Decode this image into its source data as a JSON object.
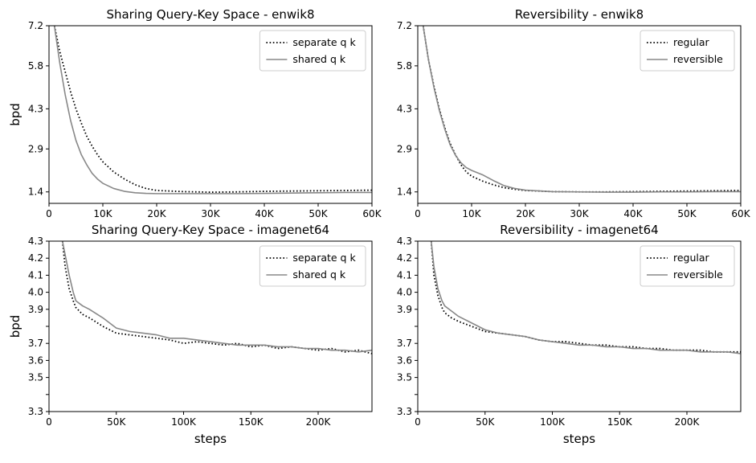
{
  "chart_data": [
    {
      "type": "line",
      "title": "Sharing Query-Key Space - enwik8",
      "xlabel": "",
      "ylabel": "bpd",
      "xlim": [
        0,
        60000
      ],
      "ylim": [
        1.0,
        7.2
      ],
      "xticks": [
        0,
        10000,
        20000,
        30000,
        40000,
        50000,
        60000
      ],
      "xtick_labels": [
        "0",
        "10K",
        "20K",
        "30K",
        "40K",
        "50K",
        "60K"
      ],
      "yticks": [
        1.4,
        2.9,
        4.3,
        5.8,
        7.2
      ],
      "ytick_labels": [
        "1.4",
        "2.9",
        "4.3",
        "5.8",
        "7.2"
      ],
      "legend": "top-right",
      "series": [
        {
          "name": "separate q k",
          "style": "dotted",
          "color": "#000000",
          "x": [
            1000,
            2000,
            3000,
            4000,
            5000,
            6000,
            7000,
            8000,
            9000,
            10000,
            12000,
            14000,
            16000,
            18000,
            20000,
            25000,
            30000,
            35000,
            40000,
            45000,
            50000,
            55000,
            60000
          ],
          "y": [
            7.2,
            6.3,
            5.6,
            4.9,
            4.3,
            3.8,
            3.35,
            3.0,
            2.7,
            2.45,
            2.1,
            1.85,
            1.65,
            1.52,
            1.45,
            1.41,
            1.39,
            1.4,
            1.42,
            1.43,
            1.44,
            1.45,
            1.46
          ]
        },
        {
          "name": "shared q k",
          "style": "solid",
          "color": "#888888",
          "x": [
            1000,
            2000,
            3000,
            4000,
            5000,
            6000,
            7000,
            8000,
            9000,
            10000,
            12000,
            14000,
            16000,
            18000,
            20000,
            25000,
            30000,
            35000,
            40000,
            45000,
            50000,
            55000,
            60000
          ],
          "y": [
            7.2,
            5.9,
            4.8,
            3.9,
            3.2,
            2.7,
            2.35,
            2.05,
            1.85,
            1.7,
            1.52,
            1.42,
            1.37,
            1.35,
            1.34,
            1.34,
            1.34,
            1.34,
            1.35,
            1.36,
            1.37,
            1.38,
            1.38
          ]
        }
      ]
    },
    {
      "type": "line",
      "title": "Reversibility - enwik8",
      "xlabel": "",
      "ylabel": "",
      "xlim": [
        0,
        60000
      ],
      "ylim": [
        1.0,
        7.2
      ],
      "xticks": [
        0,
        10000,
        20000,
        30000,
        40000,
        50000,
        60000
      ],
      "xtick_labels": [
        "0",
        "10K",
        "20K",
        "30K",
        "40K",
        "50K",
        "60K"
      ],
      "yticks": [
        1.4,
        2.9,
        4.3,
        5.8,
        7.2
      ],
      "ytick_labels": [
        "1.4",
        "2.9",
        "4.3",
        "5.8",
        "7.2"
      ],
      "legend": "top-right",
      "series": [
        {
          "name": "regular",
          "style": "dotted",
          "color": "#000000",
          "x": [
            1000,
            2000,
            3000,
            4000,
            5000,
            6000,
            7000,
            8000,
            9000,
            10000,
            12000,
            14000,
            16000,
            18000,
            20000,
            25000,
            30000,
            35000,
            40000,
            45000,
            50000,
            55000,
            60000
          ],
          "y": [
            7.2,
            6.0,
            5.1,
            4.3,
            3.65,
            3.1,
            2.7,
            2.35,
            2.1,
            1.95,
            1.78,
            1.65,
            1.55,
            1.49,
            1.45,
            1.41,
            1.4,
            1.4,
            1.41,
            1.42,
            1.43,
            1.44,
            1.45
          ]
        },
        {
          "name": "reversible",
          "style": "solid",
          "color": "#888888",
          "x": [
            1000,
            2000,
            3000,
            4000,
            5000,
            6000,
            7000,
            8000,
            9000,
            10000,
            12000,
            14000,
            16000,
            18000,
            20000,
            25000,
            30000,
            35000,
            40000,
            45000,
            50000,
            55000,
            60000
          ],
          "y": [
            7.2,
            6.0,
            5.05,
            4.25,
            3.6,
            3.05,
            2.68,
            2.42,
            2.25,
            2.15,
            2.0,
            1.8,
            1.62,
            1.52,
            1.46,
            1.41,
            1.4,
            1.39,
            1.39,
            1.4,
            1.4,
            1.41,
            1.41
          ]
        }
      ]
    },
    {
      "type": "line",
      "title": "Sharing Query-Key Space - imagenet64",
      "xlabel": "steps",
      "ylabel": "bpd",
      "xlim": [
        0,
        240000
      ],
      "ylim": [
        3.3,
        4.3
      ],
      "xticks": [
        0,
        50000,
        100000,
        150000,
        200000
      ],
      "xtick_labels": [
        "0",
        "50K",
        "100K",
        "150K",
        "200K"
      ],
      "yticks": [
        3.3,
        3.4,
        3.5,
        3.6,
        3.7,
        3.8,
        3.9,
        4.0,
        4.1,
        4.2,
        4.3
      ],
      "ytick_labels": [
        "3.3",
        "",
        "3.5",
        "3.6",
        "3.7",
        "",
        "3.9",
        "4.0",
        "4.1",
        "4.2",
        "4.3"
      ],
      "legend": "top-right",
      "series": [
        {
          "name": "separate q k",
          "style": "dotted",
          "color": "#000000",
          "x": [
            10000,
            12000,
            15000,
            18000,
            20000,
            25000,
            30000,
            40000,
            50000,
            60000,
            70000,
            80000,
            90000,
            100000,
            110000,
            120000,
            130000,
            140000,
            150000,
            160000,
            170000,
            180000,
            190000,
            200000,
            210000,
            220000,
            230000,
            240000
          ],
          "y": [
            4.3,
            4.15,
            4.02,
            3.95,
            3.91,
            3.87,
            3.85,
            3.8,
            3.76,
            3.75,
            3.74,
            3.73,
            3.72,
            3.7,
            3.71,
            3.7,
            3.69,
            3.7,
            3.68,
            3.69,
            3.67,
            3.68,
            3.67,
            3.66,
            3.67,
            3.65,
            3.66,
            3.64
          ]
        },
        {
          "name": "shared q k",
          "style": "solid",
          "color": "#888888",
          "x": [
            10000,
            12000,
            15000,
            18000,
            20000,
            25000,
            30000,
            40000,
            50000,
            60000,
            70000,
            80000,
            90000,
            100000,
            110000,
            120000,
            130000,
            140000,
            150000,
            160000,
            170000,
            180000,
            190000,
            200000,
            210000,
            220000,
            230000,
            240000
          ],
          "y": [
            4.3,
            4.22,
            4.1,
            4.0,
            3.95,
            3.92,
            3.9,
            3.85,
            3.79,
            3.77,
            3.76,
            3.75,
            3.73,
            3.73,
            3.72,
            3.71,
            3.7,
            3.69,
            3.69,
            3.69,
            3.68,
            3.68,
            3.67,
            3.67,
            3.66,
            3.66,
            3.65,
            3.66
          ]
        }
      ]
    },
    {
      "type": "line",
      "title": "Reversibility - imagenet64",
      "xlabel": "steps",
      "ylabel": "",
      "xlim": [
        0,
        240000
      ],
      "ylim": [
        3.3,
        4.3
      ],
      "xticks": [
        0,
        50000,
        100000,
        150000,
        200000
      ],
      "xtick_labels": [
        "0",
        "50K",
        "100K",
        "150K",
        "200K"
      ],
      "yticks": [
        3.3,
        3.4,
        3.5,
        3.6,
        3.7,
        3.8,
        3.9,
        4.0,
        4.1,
        4.2,
        4.3
      ],
      "ytick_labels": [
        "3.3",
        "",
        "3.5",
        "3.6",
        "3.7",
        "",
        "3.9",
        "4.0",
        "4.1",
        "4.2",
        "4.3"
      ],
      "legend": "top-right",
      "series": [
        {
          "name": "regular",
          "style": "dotted",
          "color": "#000000",
          "x": [
            10000,
            12000,
            15000,
            18000,
            20000,
            25000,
            30000,
            40000,
            50000,
            60000,
            70000,
            80000,
            90000,
            100000,
            110000,
            120000,
            130000,
            140000,
            150000,
            160000,
            170000,
            180000,
            190000,
            200000,
            210000,
            220000,
            230000,
            240000
          ],
          "y": [
            4.3,
            4.1,
            3.98,
            3.91,
            3.88,
            3.85,
            3.83,
            3.8,
            3.77,
            3.76,
            3.75,
            3.74,
            3.72,
            3.71,
            3.71,
            3.7,
            3.69,
            3.69,
            3.68,
            3.68,
            3.67,
            3.67,
            3.66,
            3.66,
            3.66,
            3.65,
            3.65,
            3.65
          ]
        },
        {
          "name": "reversible",
          "style": "solid",
          "color": "#888888",
          "x": [
            10000,
            12000,
            15000,
            18000,
            20000,
            25000,
            30000,
            40000,
            50000,
            60000,
            70000,
            80000,
            90000,
            100000,
            110000,
            120000,
            130000,
            140000,
            150000,
            160000,
            170000,
            180000,
            190000,
            200000,
            210000,
            220000,
            230000,
            240000
          ],
          "y": [
            4.3,
            4.15,
            4.02,
            3.95,
            3.92,
            3.89,
            3.86,
            3.82,
            3.78,
            3.76,
            3.75,
            3.74,
            3.72,
            3.71,
            3.7,
            3.69,
            3.69,
            3.68,
            3.68,
            3.67,
            3.67,
            3.66,
            3.66,
            3.66,
            3.65,
            3.65,
            3.65,
            3.64
          ]
        }
      ]
    }
  ]
}
